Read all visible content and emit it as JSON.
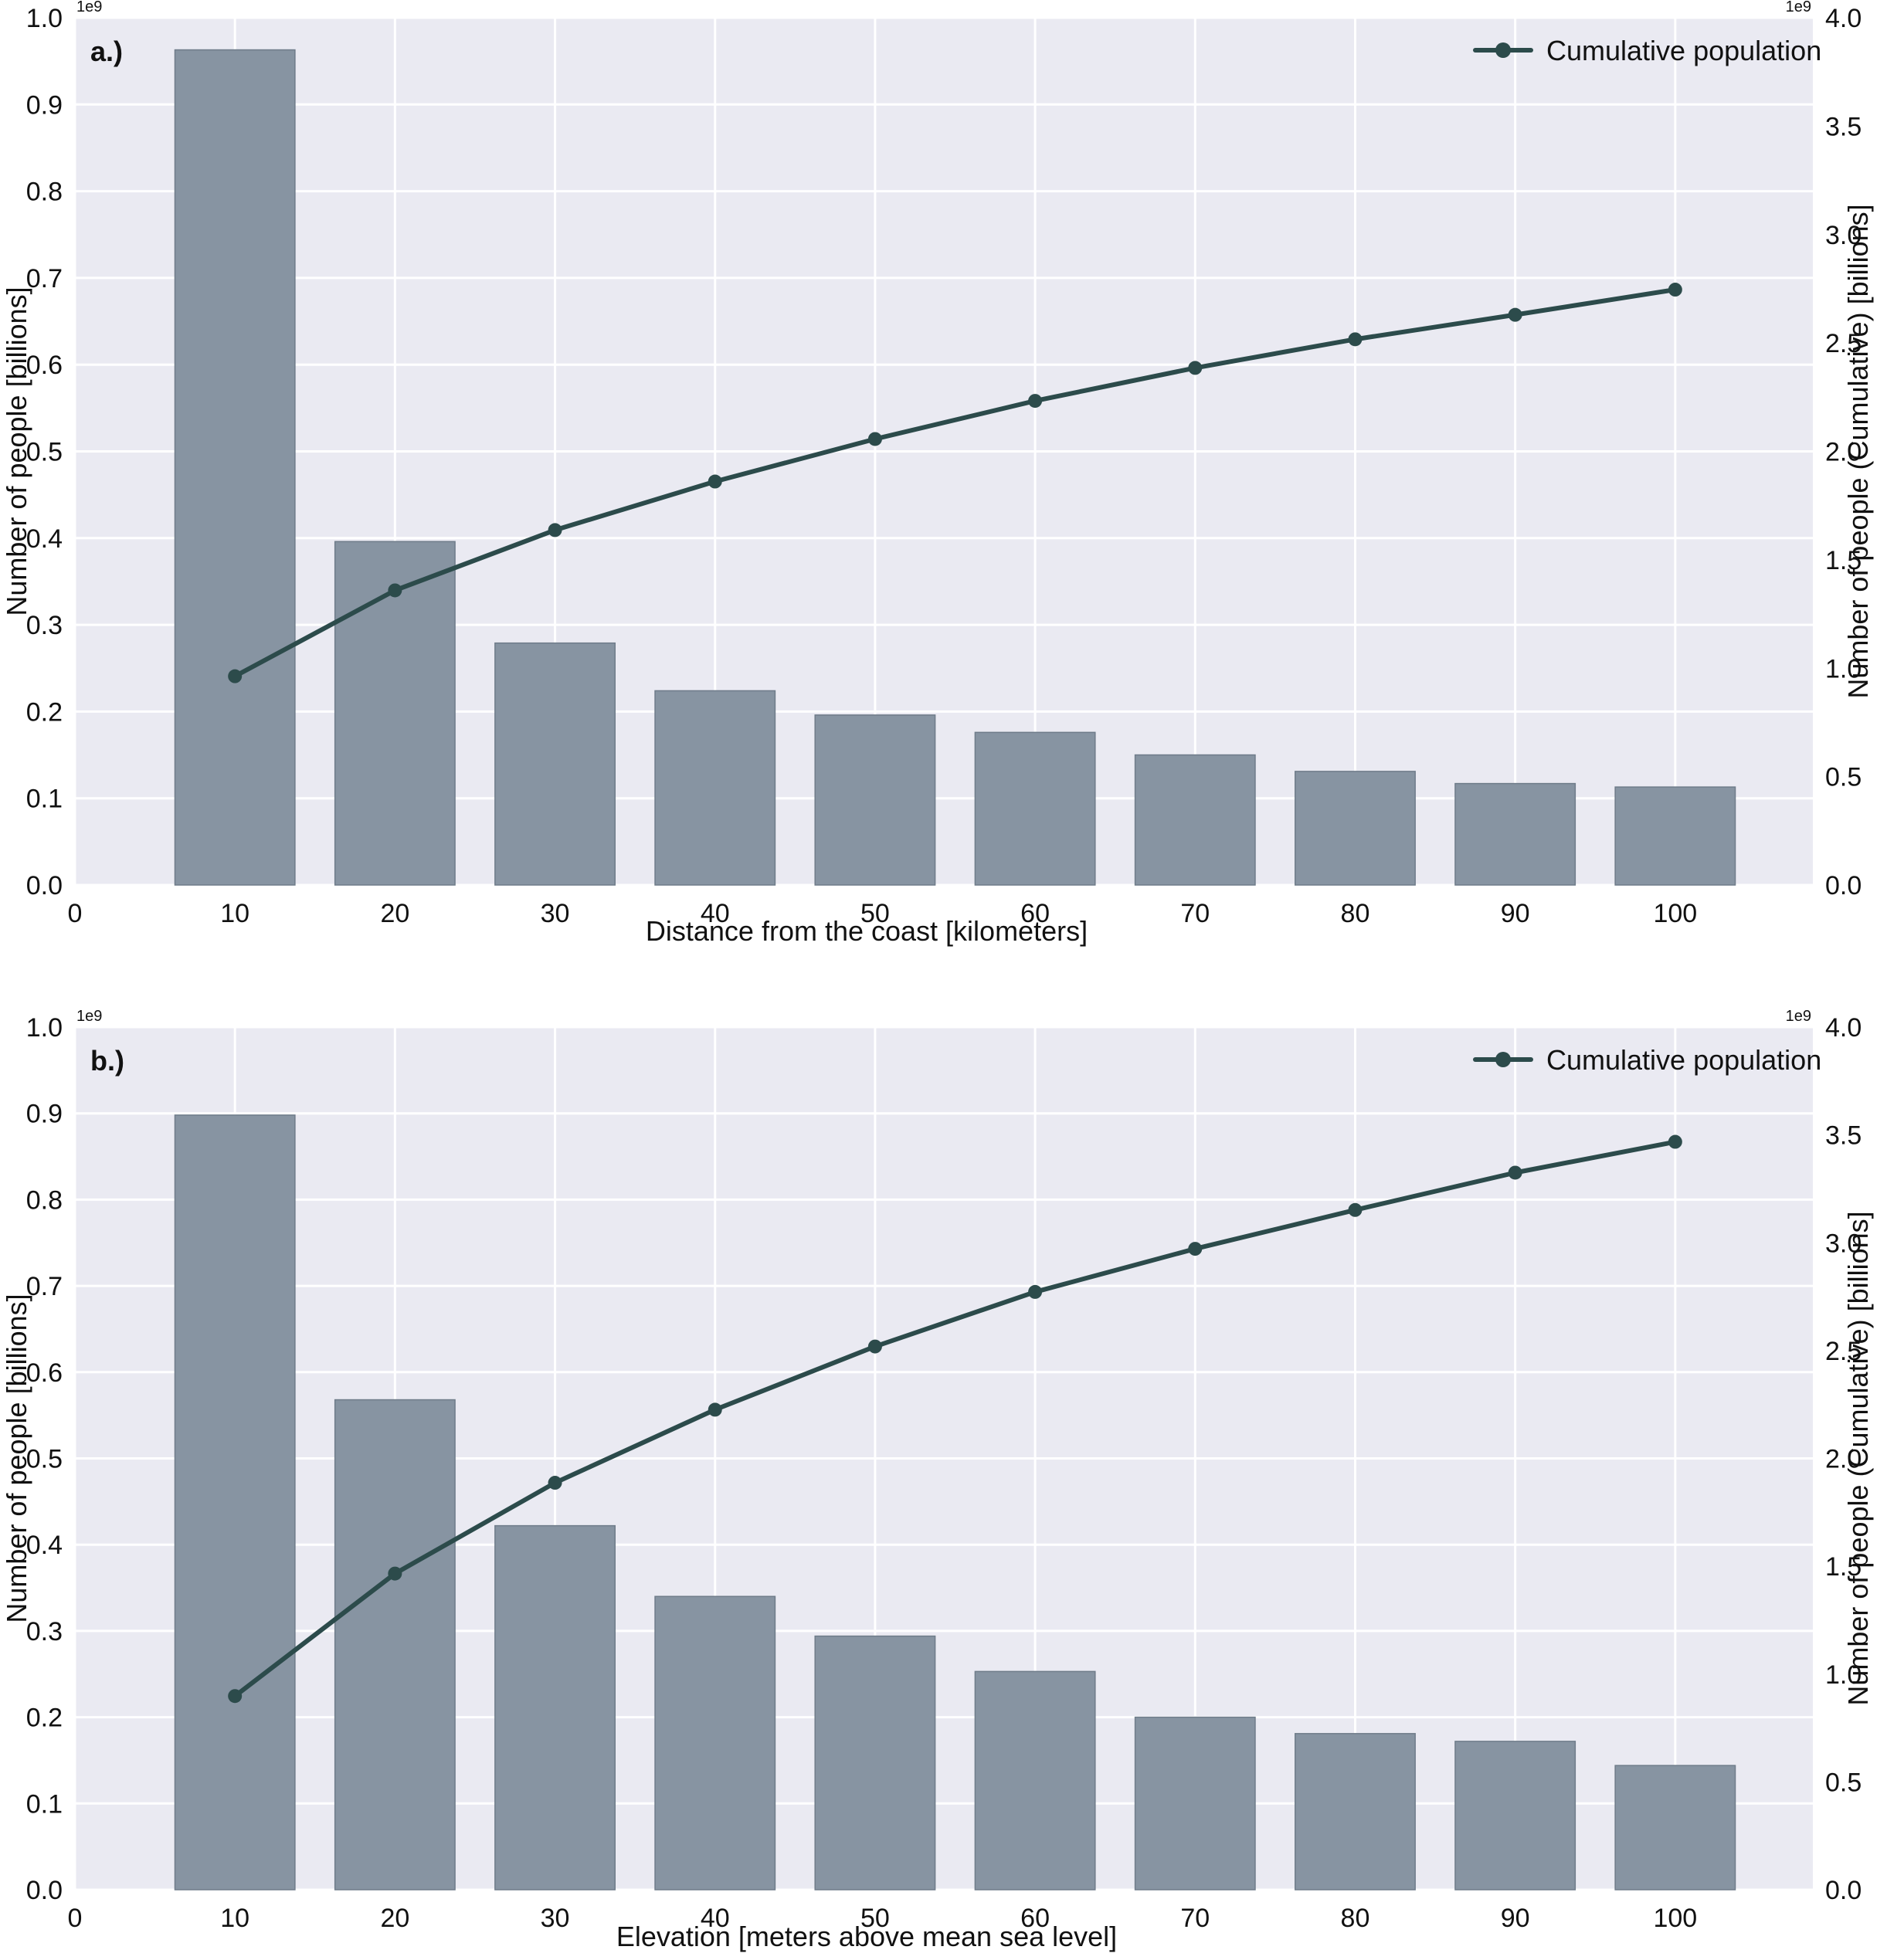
{
  "figure": {
    "background": "#ffffff",
    "plot_background": "#eaeaf2",
    "grid_color": "#ffffff",
    "bar_color": "#8592a0",
    "bar_edge": "#6f7c8a",
    "line_color": "#2c4b4b"
  },
  "chart_data": [
    {
      "type": "bar+line",
      "panel_label": "a.)",
      "title": "",
      "xlabel": "Distance from the coast [kilometers]",
      "ylabel": "Number of people [billions]",
      "ylabel_right": "Number of people (Cumulative) [billions]",
      "offset_text_left": "1e9",
      "offset_text_right": "1e9",
      "xlim": [
        0,
        108.6
      ],
      "xticks": [
        0,
        10,
        20,
        30,
        40,
        50,
        60,
        70,
        80,
        90,
        100
      ],
      "ylim": [
        0,
        1.0
      ],
      "yticks": [
        "0.0",
        "0.1",
        "0.2",
        "0.3",
        "0.4",
        "0.5",
        "0.6",
        "0.7",
        "0.8",
        "0.9",
        "1.0"
      ],
      "ylim_right": [
        0,
        4.0
      ],
      "yticks_right": [
        "0.0",
        "0.5",
        "1.0",
        "1.5",
        "2.0",
        "2.5",
        "3.0",
        "3.5",
        "4.0"
      ],
      "grid": true,
      "legend": {
        "position": "upper right",
        "entries": [
          "Cumulative population"
        ]
      },
      "categories": [
        10,
        20,
        30,
        40,
        50,
        60,
        70,
        80,
        90,
        100
      ],
      "series": [
        {
          "name": "Number of people",
          "type": "bar",
          "axis": "left",
          "values": [
            0.963,
            0.396,
            0.279,
            0.224,
            0.196,
            0.176,
            0.15,
            0.131,
            0.117,
            0.113
          ]
        },
        {
          "name": "Cumulative population",
          "type": "line",
          "axis": "right",
          "values": [
            0.963,
            1.359,
            1.637,
            1.861,
            2.057,
            2.233,
            2.385,
            2.517,
            2.63,
            2.746
          ]
        }
      ]
    },
    {
      "type": "bar+line",
      "panel_label": "b.)",
      "title": "",
      "xlabel": "Elevation [meters above mean sea level]",
      "ylabel": "Number of people [billions]",
      "ylabel_right": "Number of people (Cumulative) [billions]",
      "offset_text_left": "1e9",
      "offset_text_right": "1e9",
      "xlim": [
        0,
        108.6
      ],
      "xticks": [
        0,
        10,
        20,
        30,
        40,
        50,
        60,
        70,
        80,
        90,
        100
      ],
      "ylim": [
        0,
        1.0
      ],
      "yticks": [
        "0.0",
        "0.1",
        "0.2",
        "0.3",
        "0.4",
        "0.5",
        "0.6",
        "0.7",
        "0.8",
        "0.9",
        "1.0"
      ],
      "ylim_right": [
        0,
        4.0
      ],
      "yticks_right": [
        "0.0",
        "0.5",
        "1.0",
        "1.5",
        "2.0",
        "2.5",
        "3.0",
        "3.5",
        "4.0"
      ],
      "grid": true,
      "legend": {
        "position": "upper right",
        "entries": [
          "Cumulative population"
        ]
      },
      "categories": [
        10,
        20,
        30,
        40,
        50,
        60,
        70,
        80,
        90,
        100
      ],
      "series": [
        {
          "name": "Number of people",
          "type": "bar",
          "axis": "left",
          "values": [
            0.898,
            0.568,
            0.422,
            0.34,
            0.294,
            0.253,
            0.2,
            0.181,
            0.172,
            0.144
          ]
        },
        {
          "name": "Cumulative population",
          "type": "line",
          "axis": "right",
          "values": [
            0.898,
            1.466,
            1.887,
            2.226,
            2.519,
            2.772,
            2.972,
            3.152,
            3.325,
            3.468
          ]
        }
      ]
    }
  ]
}
